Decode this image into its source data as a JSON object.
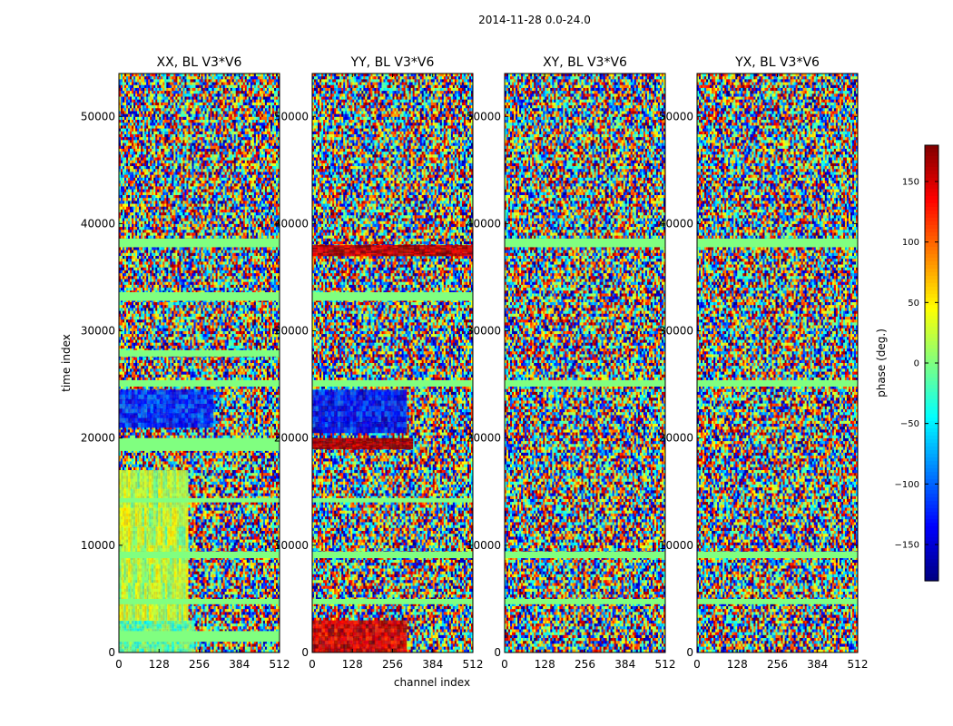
{
  "figure_title": "2014-11-28 0.0-24.0",
  "chart_data": {
    "type": "heatmap",
    "suptitle": "2014-11-28 0.0-24.0",
    "xlabel": "channel index",
    "ylabel": "time index",
    "xlim": [
      0,
      512
    ],
    "ylim": [
      0,
      54000
    ],
    "xticks": [
      0,
      128,
      256,
      384,
      512
    ],
    "yticks": [
      0,
      10000,
      20000,
      30000,
      40000,
      50000
    ],
    "colormap": "jet",
    "colorbar": {
      "label": "phase (deg.)",
      "range": [
        -180,
        180
      ],
      "ticks": [
        -150,
        -100,
        -50,
        0,
        50,
        100,
        150
      ],
      "tick_labels": [
        "−150",
        "−100",
        "−50",
        "0",
        "50",
        "100",
        "150"
      ]
    },
    "panels": [
      {
        "title": "XX, BL V3*V6",
        "flagged_time_ranges": [
          [
            1000,
            2000
          ],
          [
            4500,
            5000
          ],
          [
            8800,
            9400
          ],
          [
            14000,
            14400
          ],
          [
            18800,
            20000
          ],
          [
            24800,
            25400
          ],
          [
            27600,
            28200
          ],
          [
            32800,
            33600
          ],
          [
            37800,
            38600
          ]
        ],
        "dominant_phase_regions": [
          {
            "time_range": [
              0,
              3000
            ],
            "channel_range": [
              0,
              240
            ],
            "phase_deg": -10
          },
          {
            "time_range": [
              3000,
              17000
            ],
            "channel_range": [
              0,
              220
            ],
            "phase_deg": 20
          },
          {
            "time_range": [
              21000,
              24500
            ],
            "channel_range": [
              0,
              300
            ],
            "phase_deg": -120
          }
        ]
      },
      {
        "title": "YY, BL V3*V6",
        "flagged_time_ranges": [
          [
            4500,
            5000
          ],
          [
            8800,
            9400
          ],
          [
            14000,
            14400
          ],
          [
            24800,
            25400
          ],
          [
            32800,
            33600
          ]
        ],
        "dominant_phase_regions": [
          {
            "time_range": [
              0,
              3000
            ],
            "channel_range": [
              0,
              300
            ],
            "phase_deg": 150
          },
          {
            "time_range": [
              19000,
              20000
            ],
            "channel_range": [
              0,
              320
            ],
            "phase_deg": 170
          },
          {
            "time_range": [
              20500,
              24500
            ],
            "channel_range": [
              0,
              300
            ],
            "phase_deg": -130
          },
          {
            "time_range": [
              37000,
              38000
            ],
            "channel_range": [
              0,
              512
            ],
            "phase_deg": 160
          }
        ]
      },
      {
        "title": "XY, BL V3*V6",
        "flagged_time_ranges": [
          [
            4500,
            5000
          ],
          [
            8800,
            9400
          ],
          [
            24800,
            25400
          ],
          [
            37800,
            38600
          ]
        ],
        "dominant_phase_regions": []
      },
      {
        "title": "YX, BL V3*V6",
        "flagged_time_ranges": [
          [
            4500,
            5000
          ],
          [
            8800,
            9400
          ],
          [
            24800,
            25400
          ],
          [
            37800,
            38600
          ]
        ],
        "dominant_phase_regions": []
      }
    ]
  }
}
